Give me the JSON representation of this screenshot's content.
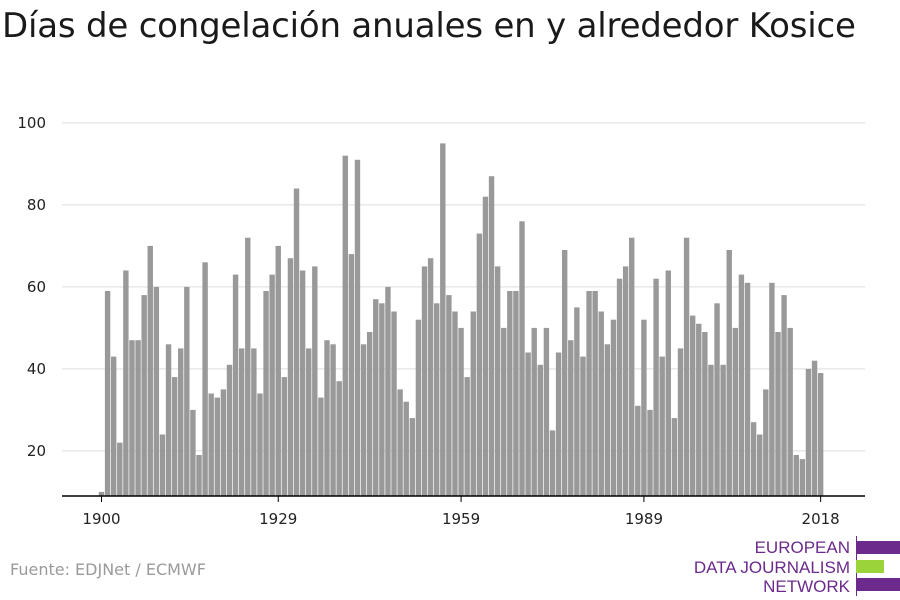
{
  "title": "Días de congelación anuales en y alrededor Kosice",
  "source": "Fuente: EDJNet / ECMWF",
  "logo": {
    "line1": "EUROPEAN",
    "line2": "DATA JOURNALISM",
    "line3": "NETWORK"
  },
  "colors": {
    "bar": "#999999",
    "grid": "#dddddd",
    "axis": "#000000",
    "logo_purple": "#6b2a8c",
    "logo_green": "#9bd33a"
  },
  "chart_data": {
    "type": "bar",
    "x_start": 1900,
    "x_end": 2018,
    "xticks": [
      1900,
      1929,
      1959,
      1989,
      2018
    ],
    "yticks": [
      20,
      40,
      60,
      80,
      100
    ],
    "ylim": [
      9,
      100
    ],
    "grid": true,
    "values": [
      10,
      59,
      43,
      22,
      64,
      47,
      47,
      58,
      70,
      60,
      24,
      46,
      38,
      45,
      60,
      30,
      19,
      66,
      34,
      33,
      35,
      41,
      63,
      45,
      72,
      45,
      34,
      59,
      63,
      70,
      38,
      67,
      84,
      64,
      45,
      65,
      33,
      47,
      46,
      37,
      92,
      68,
      91,
      46,
      49,
      57,
      56,
      60,
      54,
      35,
      32,
      28,
      52,
      65,
      67,
      56,
      95,
      58,
      54,
      50,
      38,
      54,
      73,
      82,
      87,
      65,
      50,
      59,
      59,
      76,
      44,
      50,
      41,
      50,
      25,
      44,
      69,
      47,
      55,
      43,
      59,
      59,
      54,
      46,
      52,
      62,
      65,
      72,
      31,
      52,
      30,
      62,
      43,
      64,
      28,
      45,
      72,
      53,
      51,
      49,
      41,
      56,
      41,
      69,
      50,
      63,
      61,
      27,
      24,
      35,
      61,
      49,
      58,
      50,
      19,
      18,
      40,
      42,
      39
    ]
  }
}
